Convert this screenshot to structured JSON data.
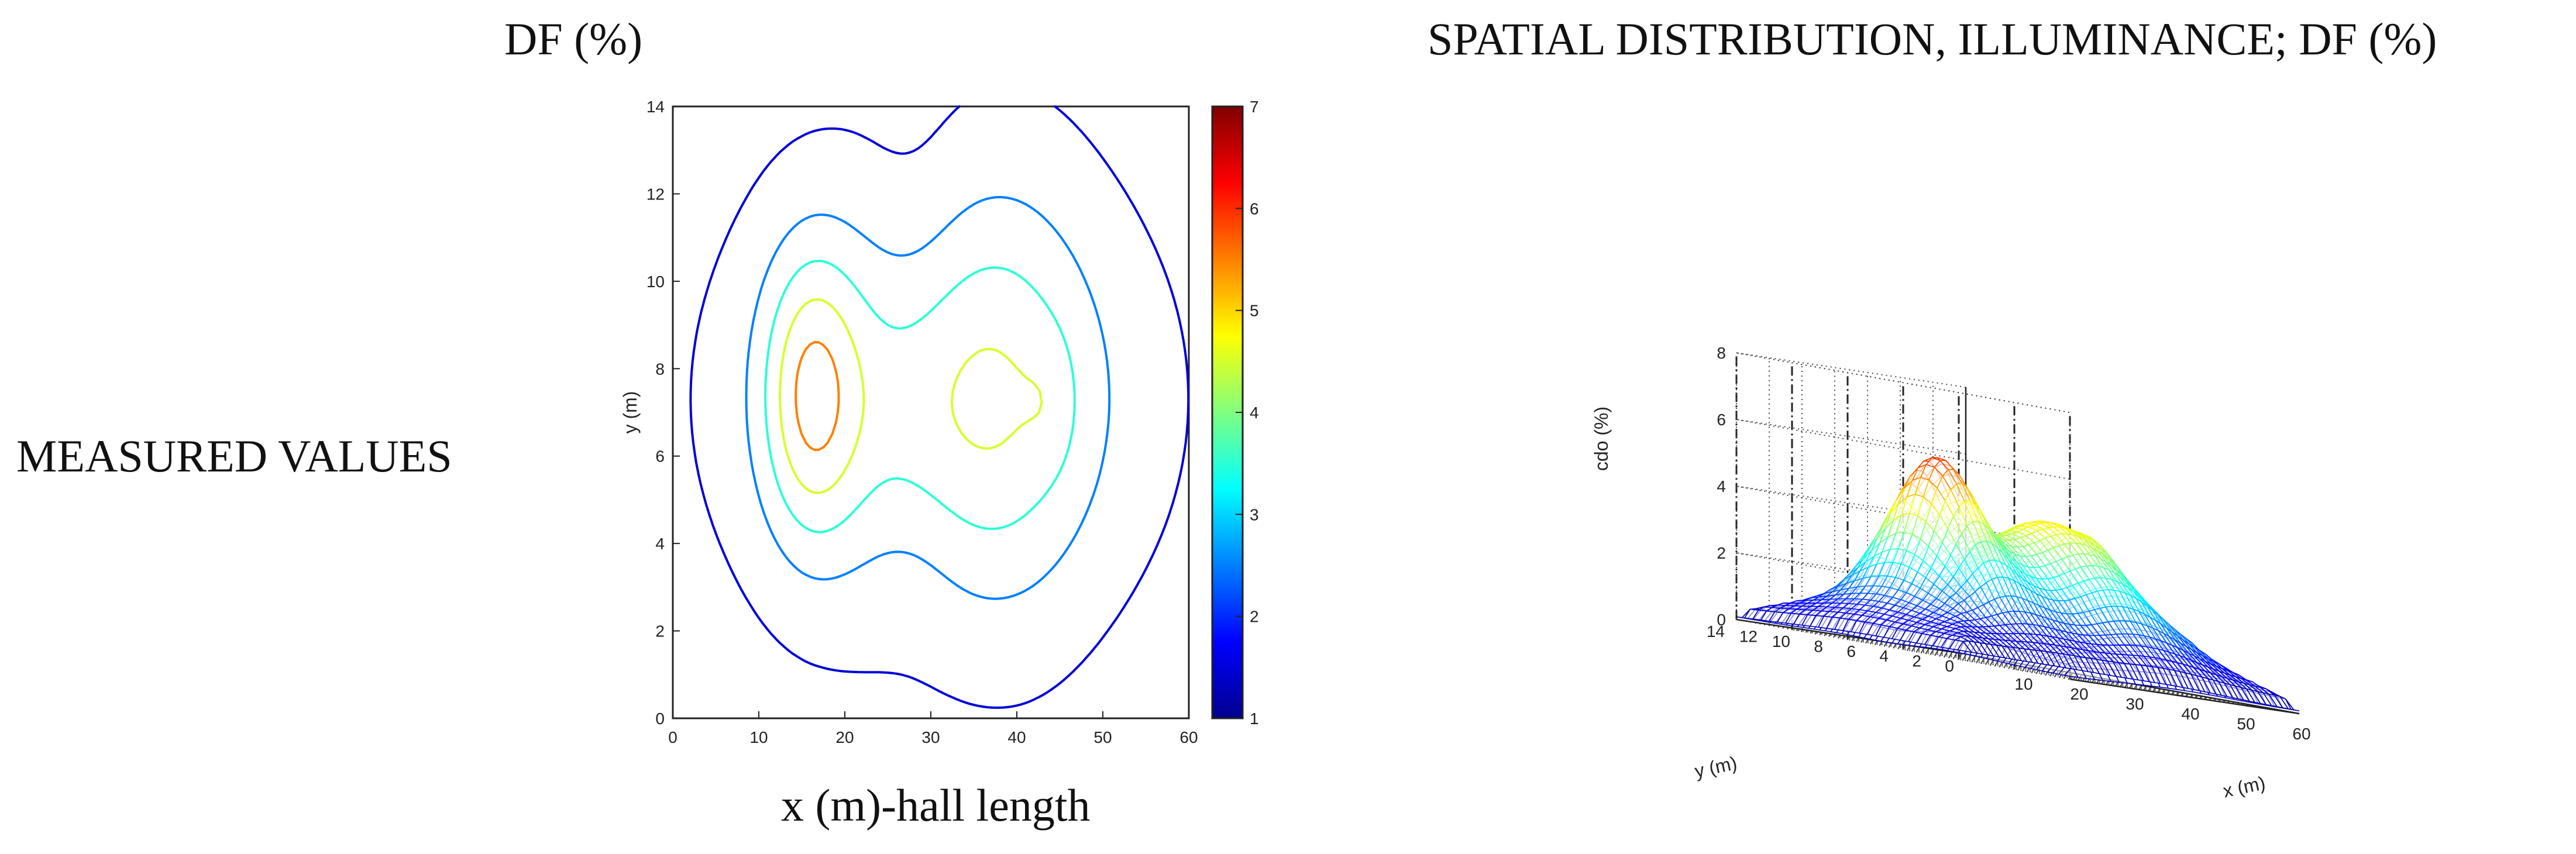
{
  "titles": {
    "left": "DF (%)",
    "right": "SPATIAL DISTRIBUTION, ILLUMINANCE; DF (%)",
    "row_label": "MEASURED VALUES",
    "contour_xlabel": "x (m)-hall length"
  },
  "chart_data": [
    {
      "type": "contour",
      "title": "DF (%)",
      "xlabel": "x (m)-hall length",
      "ylabel": "y (m)",
      "xlim": [
        0,
        60
      ],
      "ylim": [
        0,
        14
      ],
      "xticks": [
        0,
        10,
        20,
        30,
        40,
        50,
        60
      ],
      "yticks": [
        0,
        2,
        4,
        6,
        8,
        10,
        12,
        14
      ],
      "colorbar": {
        "min": 1,
        "max": 7,
        "ticks": [
          1,
          2,
          3,
          4,
          5,
          6,
          7
        ]
      },
      "levels": [
        1.5,
        2.5,
        3.5,
        4.5,
        5.5,
        6.5
      ],
      "colormap": [
        "#00008f",
        "#0000ff",
        "#0080ff",
        "#00ffff",
        "#80ff80",
        "#ffff00",
        "#ff8000",
        "#ff0000",
        "#800000"
      ]
    },
    {
      "type": "surface",
      "title": "SPATIAL DISTRIBUTION, ILLUMINANCE; DF (%)",
      "xlabel": "x (m)",
      "ylabel": "y (m)",
      "zlabel": "cdo (%)",
      "xlim": [
        0,
        60
      ],
      "ylim": [
        0,
        14
      ],
      "zlim": [
        0,
        8
      ],
      "xticks": [
        10,
        20,
        30,
        40,
        50,
        60
      ],
      "yticks": [
        0,
        2,
        4,
        6,
        8,
        10,
        12,
        14
      ],
      "zticks": [
        0,
        2,
        4,
        6,
        8
      ]
    }
  ]
}
